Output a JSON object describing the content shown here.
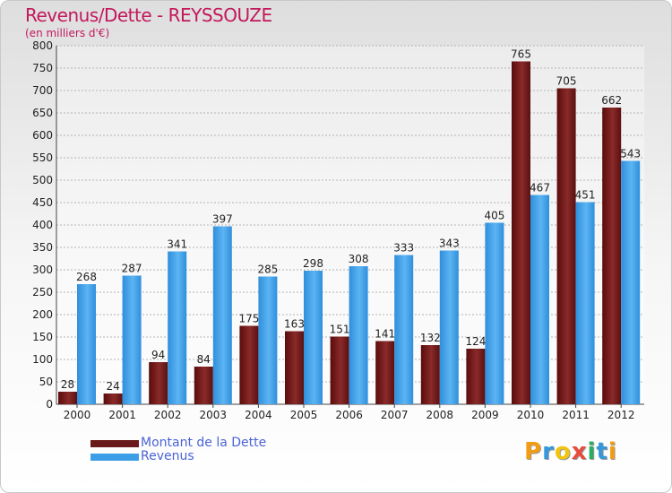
{
  "title": "Revenus/Dette - REYSSOUZE",
  "subtitle": "(en milliers d'€)",
  "logo": {
    "letters": [
      "P",
      "r",
      "o",
      "x",
      "i",
      "t",
      "i"
    ],
    "colors": [
      "#f39c12",
      "#3498db",
      "#f1c40f",
      "#e74c3c",
      "#27ae60",
      "#3498db",
      "#f39c12"
    ]
  },
  "colors": {
    "dette": "#6b1a1a",
    "revenus": "#3d9ee8"
  },
  "chart_data": {
    "type": "bar",
    "title": "Revenus/Dette - REYSSOUZE",
    "subtitle": "(en milliers d'€)",
    "categories": [
      "2000",
      "2001",
      "2002",
      "2003",
      "2004",
      "2005",
      "2006",
      "2007",
      "2008",
      "2009",
      "2010",
      "2011",
      "2012"
    ],
    "series": [
      {
        "name": "Montant de la Dette",
        "values": [
          28,
          24,
          94,
          84,
          175,
          163,
          151,
          141,
          132,
          124,
          765,
          705,
          662
        ]
      },
      {
        "name": "Revenus",
        "values": [
          268,
          287,
          341,
          397,
          285,
          298,
          308,
          333,
          343,
          405,
          467,
          451,
          543
        ]
      }
    ],
    "ylim": [
      0,
      800
    ],
    "yticks": [
      0,
      50,
      100,
      150,
      200,
      250,
      300,
      350,
      400,
      450,
      500,
      550,
      600,
      650,
      700,
      750,
      800
    ],
    "grid": true,
    "legend": "bottom-left"
  }
}
